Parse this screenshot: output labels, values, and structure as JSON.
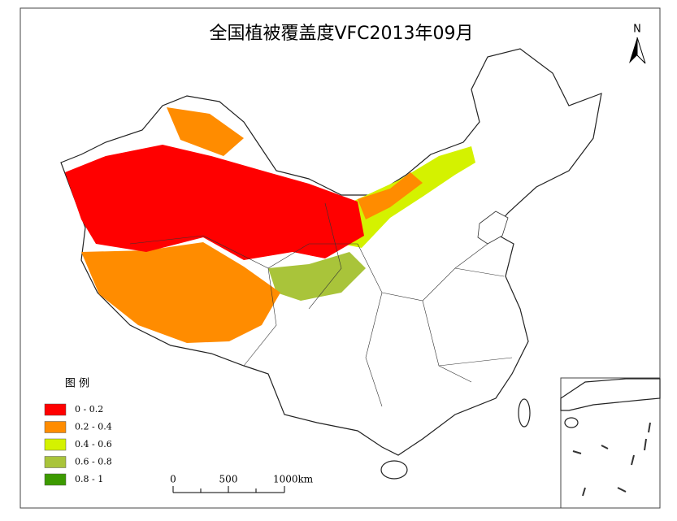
{
  "title": "全国植被覆盖度VFC2013年09月",
  "north": "N",
  "legend": {
    "title": "图 例",
    "items": [
      {
        "label": "0 - 0.2",
        "color": "#ff0000"
      },
      {
        "label": "0.2 - 0.4",
        "color": "#ff8c00"
      },
      {
        "label": "0.4 - 0.6",
        "color": "#d4f200"
      },
      {
        "label": "0.6 - 0.8",
        "color": "#a9c43a"
      },
      {
        "label": "0.8 - 1",
        "color": "#3c9a00"
      }
    ]
  },
  "scale_bar": {
    "labels": [
      "0",
      "500",
      "1000km"
    ]
  }
}
